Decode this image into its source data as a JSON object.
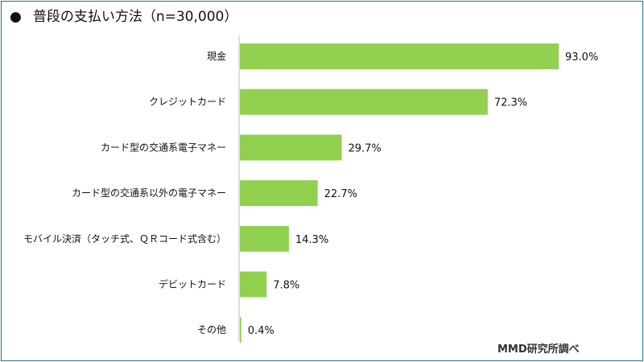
{
  "title": "普段の支払い方法（n=30,000）",
  "source": "MMD研究所調べ",
  "colors": {
    "bar": "#92d050",
    "axis": "#bfbfbf",
    "frame": "#2f6f7a"
  },
  "chart_data": {
    "type": "bar",
    "orientation": "horizontal",
    "title": "普段の支払い方法（n=30,000）",
    "categories": [
      "現金",
      "クレジットカード",
      "カード型の交通系電子マネー",
      "カード型の交通系以外の電子マネー",
      "モバイル決済（タッチ式、ＱＲコード式含む）",
      "デビットカード",
      "その他"
    ],
    "values": [
      93.0,
      72.3,
      29.7,
      22.7,
      14.3,
      7.8,
      0.4
    ],
    "value_labels": [
      "93.0%",
      "72.3%",
      "29.7%",
      "22.7%",
      "14.3%",
      "7.8%",
      "0.4%"
    ],
    "xlim": [
      0,
      100
    ],
    "grid": false,
    "legend": "none"
  }
}
